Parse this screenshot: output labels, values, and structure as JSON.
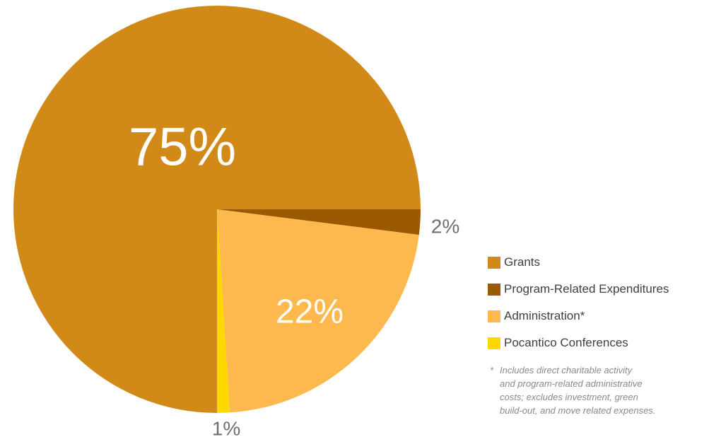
{
  "chart_data": {
    "type": "pie",
    "slices": [
      {
        "label": "Grants",
        "value": 75,
        "display": "75%",
        "color": "#d18a17"
      },
      {
        "label": "Program-Related Expenditures",
        "value": 2,
        "display": "2%",
        "color": "#9c5a00"
      },
      {
        "label": "Administration*",
        "value": 22,
        "display": "22%",
        "color": "#fdb94d"
      },
      {
        "label": "Pocantico Conferences",
        "value": 1,
        "display": "1%",
        "color": "#ffd800"
      }
    ],
    "legend_position": "right"
  },
  "footnote": {
    "marker": "*",
    "lines": [
      "Includes direct charitable activity",
      "and program-related administrative",
      "costs; excludes investment, green",
      "build-out, and move related expenses."
    ]
  }
}
